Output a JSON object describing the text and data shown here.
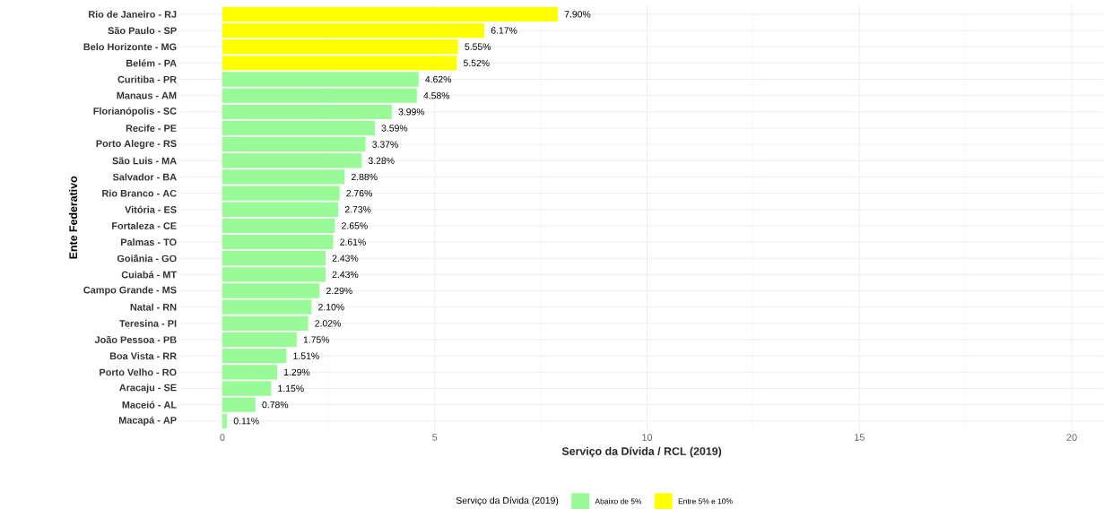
{
  "chart_data": {
    "type": "bar",
    "orientation": "horizontal",
    "categories": [
      "Rio de Janeiro - RJ",
      "São Paulo - SP",
      "Belo Horizonte - MG",
      "Belém - PA",
      "Curitiba - PR",
      "Manaus - AM",
      "Florianópolis - SC",
      "Recife - PE",
      "Porto Alegre - RS",
      "São Luis - MA",
      "Salvador - BA",
      "Rio Branco - AC",
      "Vitória - ES",
      "Fortaleza - CE",
      "Palmas - TO",
      "Goiânia - GO",
      "Cuiabá - MT",
      "Campo Grande - MS",
      "Natal - RN",
      "Teresina - PI",
      "João Pessoa - PB",
      "Boa Vista - RR",
      "Porto Velho - RO",
      "Aracaju - SE",
      "Maceió - AL",
      "Macapá - AP"
    ],
    "series": [
      {
        "name": "Abaixo de 5%",
        "color": "#98fb98",
        "values": [
          null,
          null,
          null,
          null,
          4.62,
          4.58,
          3.99,
          3.59,
          3.37,
          3.28,
          2.88,
          2.76,
          2.73,
          2.65,
          2.61,
          2.43,
          2.43,
          2.29,
          2.1,
          2.02,
          1.75,
          1.51,
          1.29,
          1.15,
          0.78,
          0.11
        ],
        "value_labels": [
          null,
          null,
          null,
          null,
          "4.62%",
          "4.58%",
          "3.99%",
          "3.59%",
          "3.37%",
          "3.28%",
          "2.88%",
          "2.76%",
          "2.73%",
          "2.65%",
          "2.61%",
          "2.43%",
          "2.43%",
          "2.29%",
          "2.10%",
          "2.02%",
          "1.75%",
          "1.51%",
          "1.29%",
          "1.15%",
          "0.78%",
          "0.11%"
        ]
      },
      {
        "name": "Entre 5% e 10%",
        "color": "#ffff00",
        "values": [
          7.9,
          6.17,
          5.55,
          5.52,
          null,
          null,
          null,
          null,
          null,
          null,
          null,
          null,
          null,
          null,
          null,
          null,
          null,
          null,
          null,
          null,
          null,
          null,
          null,
          null,
          null,
          null
        ],
        "value_labels": [
          "7.90%",
          "6.17%",
          "5.55%",
          "5.52%",
          null,
          null,
          null,
          null,
          null,
          null,
          null,
          null,
          null,
          null,
          null,
          null,
          null,
          null,
          null,
          null,
          null,
          null,
          null,
          null,
          null,
          null
        ]
      }
    ],
    "xlabel": "Serviço da Dívida / RCL (2019)",
    "ylabel": "Ente Federativo",
    "legend_title": "Serviço da Dívida (2019)",
    "xlim": [
      -1,
      20.75
    ],
    "xticks": [
      0,
      5,
      10,
      15,
      20
    ],
    "grid": true,
    "legend": "bottom"
  }
}
